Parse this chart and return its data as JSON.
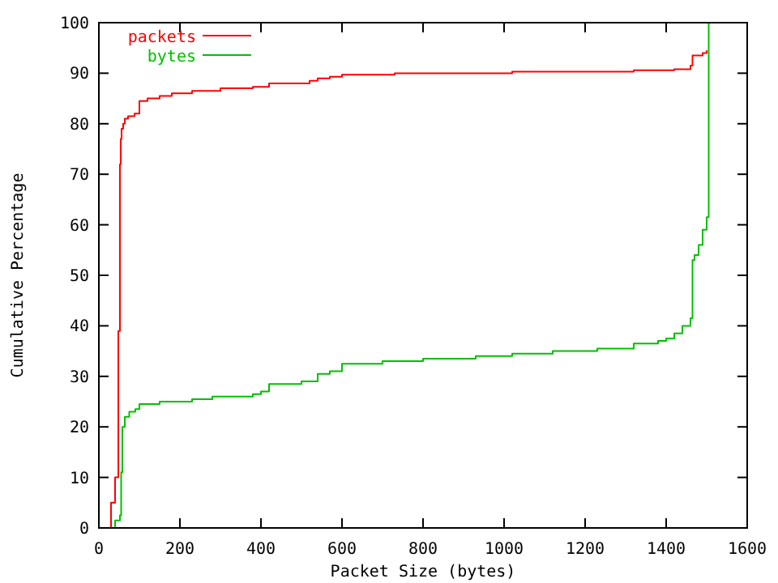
{
  "chart_data": {
    "type": "step",
    "xlabel": "Packet Size (bytes)",
    "ylabel": "Cumulative Percentage",
    "xlim": [
      0,
      1600
    ],
    "ylim": [
      0,
      100
    ],
    "xticks": [
      0,
      200,
      400,
      600,
      800,
      1000,
      1200,
      1400,
      1600
    ],
    "yticks": [
      0,
      10,
      20,
      30,
      40,
      50,
      60,
      70,
      80,
      90,
      100
    ],
    "grid": false,
    "legend": "top left",
    "series": [
      {
        "name": "packets",
        "color": "#ff0000",
        "x": [
          20,
          30,
          40,
          48,
          52,
          54,
          56,
          60,
          64,
          72,
          88,
          100,
          120,
          150,
          180,
          230,
          300,
          380,
          420,
          520,
          540,
          570,
          600,
          730,
          1020,
          1320,
          1420,
          1460,
          1465,
          1490,
          1500
        ],
        "values": [
          0,
          5,
          10,
          39,
          72,
          77,
          79,
          80,
          81,
          81.5,
          82,
          84.5,
          85,
          85.5,
          86,
          86.5,
          87,
          87.3,
          88,
          88.5,
          89,
          89.3,
          89.7,
          90,
          90.3,
          90.6,
          90.8,
          91.5,
          93.5,
          94,
          94.5
        ]
      },
      {
        "name": "bytes",
        "color": "#00c000",
        "x": [
          20,
          40,
          52,
          55,
          58,
          64,
          75,
          90,
          100,
          150,
          230,
          280,
          380,
          400,
          420,
          500,
          540,
          570,
          600,
          700,
          800,
          930,
          1020,
          1120,
          1230,
          1320,
          1380,
          1400,
          1420,
          1440,
          1460,
          1465,
          1470,
          1480,
          1490,
          1500,
          1505
        ],
        "values": [
          0,
          1.5,
          2.5,
          11,
          20,
          22,
          23,
          23.5,
          24.5,
          25,
          25.5,
          26,
          26.5,
          27,
          28.5,
          29,
          30.5,
          31,
          32.5,
          33,
          33.5,
          34,
          34.5,
          35,
          35.5,
          36.5,
          37,
          37.5,
          38.5,
          40,
          41.5,
          53,
          54,
          56,
          59,
          61.5,
          100
        ]
      }
    ]
  }
}
